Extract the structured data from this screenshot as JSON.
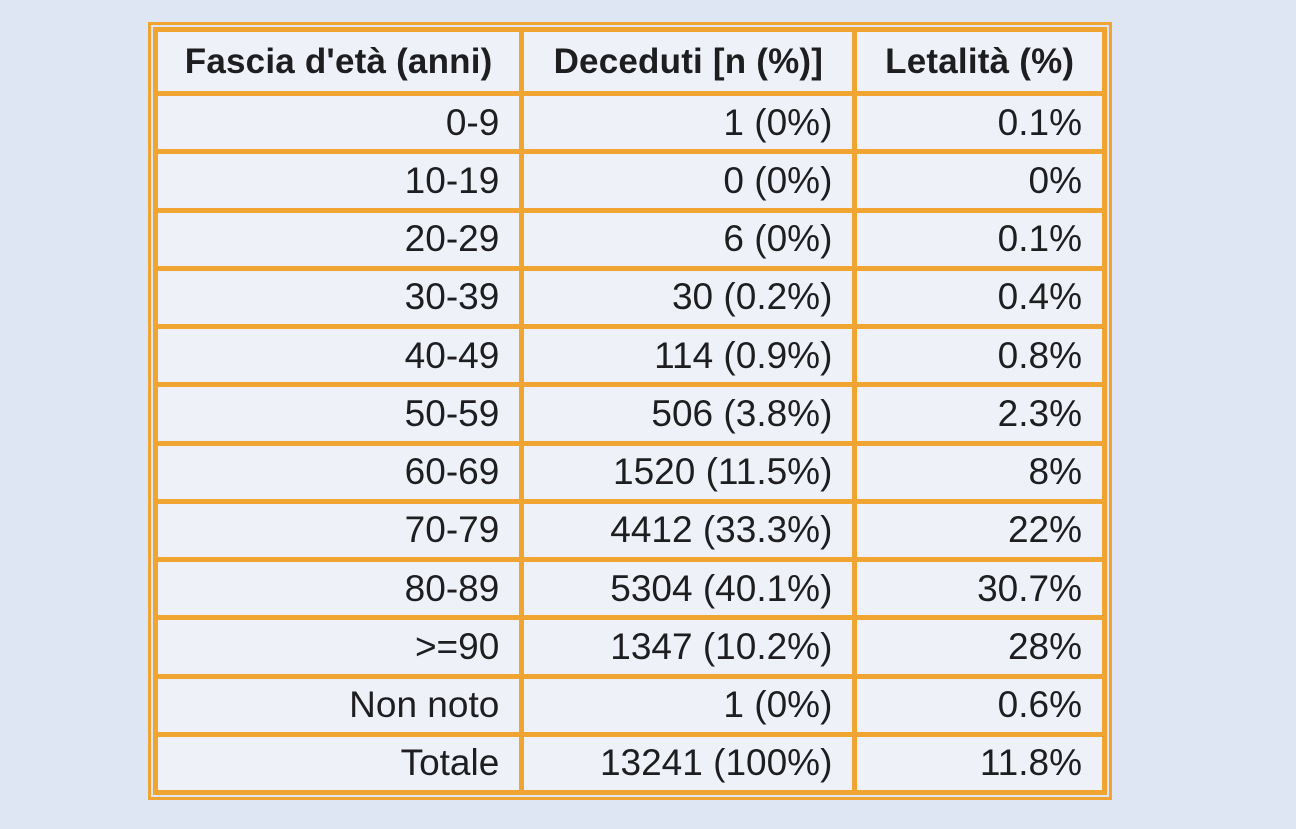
{
  "colors": {
    "accent_orange": "#F0A431",
    "page_background": "#DDE6F2",
    "cell_background": "#EEF2F8",
    "text": "#1E1E20"
  },
  "chart_data": {
    "type": "table",
    "columns": [
      "Fascia d'età (anni)",
      "Deceduti [n (%)]",
      "Letalità (%)"
    ],
    "rows": [
      [
        "0-9",
        "1 (0%)",
        "0.1%"
      ],
      [
        "10-19",
        "0 (0%)",
        "0%"
      ],
      [
        "20-29",
        "6 (0%)",
        "0.1%"
      ],
      [
        "30-39",
        "30 (0.2%)",
        "0.4%"
      ],
      [
        "40-49",
        "114 (0.9%)",
        "0.8%"
      ],
      [
        "50-59",
        "506 (3.8%)",
        "2.3%"
      ],
      [
        "60-69",
        "1520 (11.5%)",
        "8%"
      ],
      [
        "70-79",
        "4412 (33.3%)",
        "22%"
      ],
      [
        "80-89",
        "5304 (40.1%)",
        "30.7%"
      ],
      [
        ">=90",
        "1347 (10.2%)",
        "28%"
      ],
      [
        "Non noto",
        "1 (0%)",
        "0.6%"
      ],
      [
        "Totale",
        "13241 (100%)",
        "11.8%"
      ]
    ]
  }
}
